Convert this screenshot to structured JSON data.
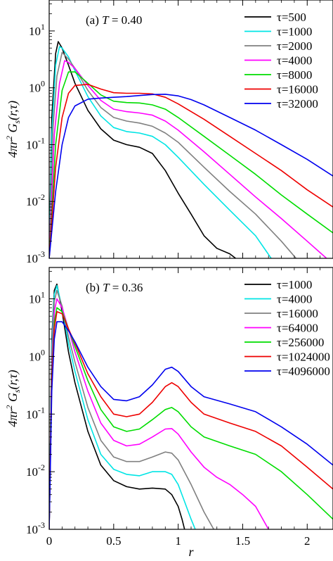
{
  "chart_data": [
    {
      "type": "line",
      "panel_label": "(a)",
      "temperature_label": "T = 0.40",
      "xlabel": "r",
      "ylabel": "4πr² Gs(r,τ)",
      "y_scale": "log",
      "xlim": [
        0,
        2.2
      ],
      "ylim": [
        0.001,
        35
      ],
      "grid": false,
      "legend_position": "top-right",
      "x_tick_labels": [],
      "y_tick_labels": [
        "10^-3",
        "10^-2",
        "10^-1",
        "10^0",
        "10^1"
      ],
      "series": [
        {
          "name": "τ=500",
          "color": "#000000",
          "x": [
            0,
            0.02,
            0.05,
            0.07,
            0.1,
            0.15,
            0.2,
            0.3,
            0.4,
            0.5,
            0.6,
            0.7,
            0.8,
            0.9,
            1.0,
            1.1,
            1.2,
            1.3,
            1.4,
            1.5
          ],
          "y": [
            0.001,
            0.3,
            4,
            6.5,
            5,
            2.5,
            1.2,
            0.4,
            0.19,
            0.12,
            0.1,
            0.09,
            0.07,
            0.035,
            0.014,
            0.006,
            0.0025,
            0.0015,
            0.0012,
            0.0008
          ]
        },
        {
          "name": "τ=1000",
          "color": "#00e5e5",
          "x": [
            0,
            0.02,
            0.05,
            0.08,
            0.1,
            0.15,
            0.2,
            0.3,
            0.4,
            0.5,
            0.6,
            0.7,
            0.8,
            0.9,
            1.0,
            1.2,
            1.4,
            1.6,
            1.75
          ],
          "y": [
            0.001,
            0.15,
            2.5,
            5.3,
            5,
            3.5,
            2,
            0.7,
            0.32,
            0.2,
            0.17,
            0.16,
            0.14,
            0.1,
            0.06,
            0.02,
            0.007,
            0.0025,
            0.0008
          ]
        },
        {
          "name": "τ=2000",
          "color": "#808080",
          "x": [
            0,
            0.03,
            0.06,
            0.1,
            0.15,
            0.2,
            0.3,
            0.4,
            0.5,
            0.6,
            0.7,
            0.8,
            0.9,
            1.0,
            1.2,
            1.4,
            1.6,
            1.8,
            1.95
          ],
          "y": [
            0.001,
            0.2,
            1.6,
            4.2,
            3.2,
            2.2,
            0.9,
            0.45,
            0.3,
            0.26,
            0.24,
            0.21,
            0.16,
            0.11,
            0.04,
            0.015,
            0.006,
            0.002,
            0.0008
          ]
        },
        {
          "name": "τ=4000",
          "color": "#ff00ff",
          "x": [
            0,
            0.04,
            0.08,
            0.12,
            0.15,
            0.2,
            0.3,
            0.4,
            0.5,
            0.6,
            0.7,
            0.8,
            0.9,
            1.0,
            1.2,
            1.4,
            1.6,
            1.8,
            2.0,
            2.15
          ],
          "y": [
            0.001,
            0.15,
            1.2,
            3,
            2.8,
            2.2,
            1.1,
            0.6,
            0.42,
            0.38,
            0.36,
            0.33,
            0.26,
            0.18,
            0.075,
            0.03,
            0.012,
            0.005,
            0.002,
            0.001
          ]
        },
        {
          "name": "τ=8000",
          "color": "#00dd00",
          "x": [
            0,
            0.05,
            0.1,
            0.15,
            0.2,
            0.3,
            0.4,
            0.5,
            0.6,
            0.7,
            0.8,
            0.9,
            1.0,
            1.2,
            1.4,
            1.6,
            1.8,
            2.0,
            2.2
          ],
          "y": [
            0.001,
            0.1,
            0.9,
            1.9,
            1.9,
            1.2,
            0.75,
            0.58,
            0.55,
            0.54,
            0.5,
            0.42,
            0.3,
            0.14,
            0.065,
            0.03,
            0.013,
            0.006,
            0.0028
          ]
        },
        {
          "name": "τ=16000",
          "color": "#ee0000",
          "x": [
            0,
            0.05,
            0.1,
            0.15,
            0.2,
            0.3,
            0.4,
            0.5,
            0.6,
            0.7,
            0.8,
            0.9,
            1.0,
            1.2,
            1.4,
            1.6,
            1.8,
            2.0,
            2.2
          ],
          "y": [
            0.001,
            0.04,
            0.3,
            0.8,
            1.1,
            1.15,
            0.95,
            0.82,
            0.8,
            0.8,
            0.78,
            0.68,
            0.52,
            0.28,
            0.14,
            0.07,
            0.035,
            0.016,
            0.008
          ]
        },
        {
          "name": "τ=32000",
          "color": "#0000ee",
          "x": [
            0,
            0.05,
            0.1,
            0.15,
            0.2,
            0.3,
            0.4,
            0.5,
            0.6,
            0.7,
            0.8,
            0.9,
            1.0,
            1.1,
            1.2,
            1.4,
            1.6,
            1.8,
            2.0,
            2.2
          ],
          "y": [
            0.001,
            0.015,
            0.1,
            0.3,
            0.48,
            0.63,
            0.66,
            0.68,
            0.7,
            0.73,
            0.76,
            0.77,
            0.72,
            0.62,
            0.5,
            0.3,
            0.18,
            0.1,
            0.055,
            0.028
          ]
        }
      ]
    },
    {
      "type": "line",
      "panel_label": "(b)",
      "temperature_label": "T = 0.36",
      "xlabel": "r",
      "ylabel": "4πr² Gs(r,τ)",
      "y_scale": "log",
      "xlim": [
        0,
        2.2
      ],
      "ylim": [
        0.001,
        35
      ],
      "grid": false,
      "legend_position": "top-right",
      "x_tick_labels": [
        "0",
        "0.5",
        "1",
        "1.5",
        "2"
      ],
      "y_tick_labels": [
        "10^-3",
        "10^-2",
        "10^-1",
        "10^0",
        "10^1"
      ],
      "series": [
        {
          "name": "τ=1000",
          "color": "#000000",
          "x": [
            0,
            0.02,
            0.04,
            0.06,
            0.1,
            0.15,
            0.2,
            0.3,
            0.4,
            0.5,
            0.6,
            0.7,
            0.8,
            0.9,
            0.95,
            1.0,
            1.03,
            1.06
          ],
          "y": [
            0.001,
            2,
            14,
            18,
            6,
            1.2,
            0.35,
            0.05,
            0.013,
            0.007,
            0.0055,
            0.005,
            0.0052,
            0.005,
            0.004,
            0.0025,
            0.0015,
            0.0008
          ]
        },
        {
          "name": "τ=4000",
          "color": "#00e5e5",
          "x": [
            0,
            0.02,
            0.04,
            0.06,
            0.1,
            0.15,
            0.2,
            0.3,
            0.4,
            0.5,
            0.6,
            0.7,
            0.8,
            0.9,
            0.95,
            1.0,
            1.05,
            1.1,
            1.15
          ],
          "y": [
            0.001,
            1.5,
            12,
            17,
            7,
            1.7,
            0.55,
            0.08,
            0.02,
            0.011,
            0.009,
            0.0085,
            0.01,
            0.01,
            0.009,
            0.006,
            0.003,
            0.0015,
            0.0008
          ]
        },
        {
          "name": "τ=16000",
          "color": "#808080",
          "x": [
            0,
            0.02,
            0.04,
            0.06,
            0.1,
            0.15,
            0.2,
            0.3,
            0.4,
            0.5,
            0.6,
            0.7,
            0.8,
            0.9,
            0.95,
            1.0,
            1.1,
            1.2,
            1.3
          ],
          "y": [
            0.001,
            1,
            9,
            14,
            7.5,
            2.2,
            0.8,
            0.13,
            0.035,
            0.018,
            0.015,
            0.015,
            0.018,
            0.022,
            0.021,
            0.016,
            0.006,
            0.002,
            0.0008
          ]
        },
        {
          "name": "τ=64000",
          "color": "#ff00ff",
          "x": [
            0,
            0.02,
            0.04,
            0.06,
            0.1,
            0.15,
            0.2,
            0.3,
            0.4,
            0.5,
            0.6,
            0.7,
            0.8,
            0.9,
            0.95,
            1.0,
            1.1,
            1.2,
            1.3,
            1.4,
            1.5,
            1.6,
            1.7
          ],
          "y": [
            0.001,
            0.7,
            6,
            10,
            7,
            3,
            1.2,
            0.25,
            0.07,
            0.035,
            0.028,
            0.03,
            0.04,
            0.055,
            0.056,
            0.045,
            0.022,
            0.012,
            0.008,
            0.006,
            0.004,
            0.0025,
            0.001
          ]
        },
        {
          "name": "τ=256000",
          "color": "#00dd00",
          "x": [
            0,
            0.02,
            0.04,
            0.06,
            0.1,
            0.15,
            0.2,
            0.3,
            0.4,
            0.5,
            0.6,
            0.7,
            0.8,
            0.9,
            0.95,
            1.0,
            1.1,
            1.2,
            1.4,
            1.6,
            1.8,
            2.0,
            2.2
          ],
          "y": [
            0.001,
            0.5,
            4,
            7,
            6,
            3,
            1.5,
            0.38,
            0.12,
            0.06,
            0.05,
            0.055,
            0.08,
            0.12,
            0.13,
            0.11,
            0.06,
            0.04,
            0.028,
            0.02,
            0.01,
            0.004,
            0.0015
          ]
        },
        {
          "name": "τ=1024000",
          "color": "#ee0000",
          "x": [
            0,
            0.02,
            0.04,
            0.06,
            0.1,
            0.15,
            0.2,
            0.3,
            0.4,
            0.5,
            0.6,
            0.7,
            0.8,
            0.9,
            0.95,
            1.0,
            1.1,
            1.2,
            1.4,
            1.6,
            1.8,
            2.0,
            2.2
          ],
          "y": [
            0.001,
            0.4,
            3,
            6,
            5.5,
            3,
            1.7,
            0.5,
            0.2,
            0.1,
            0.09,
            0.1,
            0.16,
            0.3,
            0.35,
            0.3,
            0.16,
            0.1,
            0.07,
            0.05,
            0.028,
            0.012,
            0.005
          ]
        },
        {
          "name": "τ=4096000",
          "color": "#0000ee",
          "x": [
            0,
            0.02,
            0.04,
            0.06,
            0.1,
            0.15,
            0.2,
            0.3,
            0.4,
            0.5,
            0.6,
            0.7,
            0.8,
            0.9,
            0.95,
            1.0,
            1.1,
            1.2,
            1.4,
            1.6,
            1.8,
            2.0,
            2.2
          ],
          "y": [
            0.001,
            0.25,
            2,
            4,
            4,
            2.8,
            1.8,
            0.65,
            0.3,
            0.18,
            0.17,
            0.2,
            0.32,
            0.6,
            0.65,
            0.55,
            0.3,
            0.2,
            0.15,
            0.11,
            0.06,
            0.03,
            0.013
          ]
        }
      ]
    }
  ]
}
